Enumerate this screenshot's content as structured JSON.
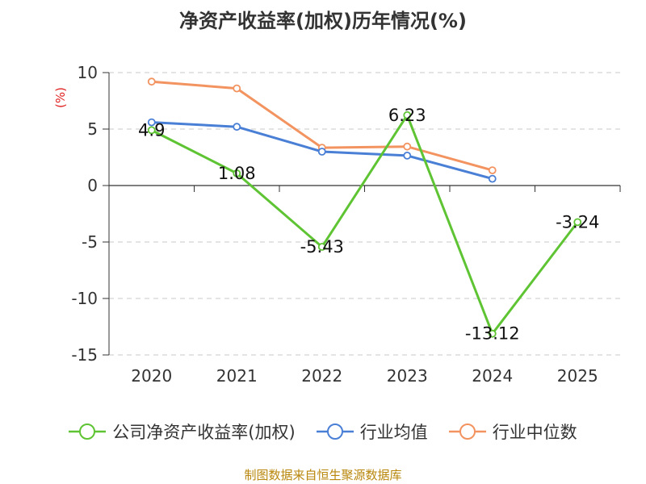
{
  "chart_data": {
    "type": "line",
    "title": "净资产收益率(加权)历年情况(%)",
    "ylabel": "(%)",
    "xlabel": "",
    "categories": [
      "2020",
      "2021",
      "2022",
      "2023",
      "2024",
      "2025"
    ],
    "ylim": [
      -15,
      10
    ],
    "yticks": [
      10,
      5,
      0,
      -5,
      -10,
      -15
    ],
    "grid": true,
    "legend_position": "bottom",
    "series": [
      {
        "name": "公司净资产收益率(加权)",
        "color": "#5ec433",
        "values": [
          4.9,
          1.08,
          -5.43,
          6.23,
          -13.12,
          -3.24
        ],
        "labels": [
          "4.9",
          "1.08",
          "-5.43",
          "6.23",
          "-13.12",
          "-3.24"
        ]
      },
      {
        "name": "行业均值",
        "color": "#4a7fd6",
        "values": [
          5.6,
          5.2,
          3.0,
          2.65,
          0.6,
          null
        ]
      },
      {
        "name": "行业中位数",
        "color": "#f29360",
        "values": [
          9.2,
          8.6,
          3.35,
          3.45,
          1.35,
          null
        ]
      }
    ]
  },
  "footer": "制图数据来自恒生聚源数据库"
}
